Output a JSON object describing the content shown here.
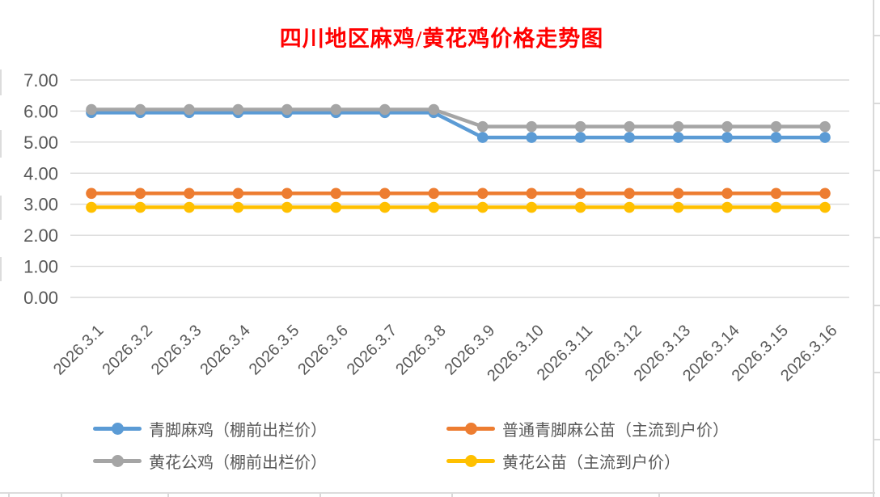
{
  "window": {
    "background": "#FFFFFF"
  },
  "title": {
    "text": "四川地区麻鸡/黄花鸡价格走势图",
    "color": "#FF0000"
  },
  "axis": {
    "ytick_labels": [
      "0.00",
      "1.00",
      "2.00",
      "3.00",
      "4.00",
      "5.00",
      "6.00",
      "7.00"
    ],
    "text_color": "#595959",
    "gridline_color": "#D9D9D9"
  },
  "chart_data": {
    "type": "line",
    "title": "四川地区麻鸡/黄花鸡价格走势图",
    "x": [
      "2026.3.1",
      "2026.3.2",
      "2026.3.3",
      "2026.3.4",
      "2026.3.5",
      "2026.3.6",
      "2026.3.7",
      "2026.3.8",
      "2026.3.9",
      "2026.3.10",
      "2026.3.11",
      "2026.3.12",
      "2026.3.13",
      "2026.3.14",
      "2026.3.15",
      "2026.3.16"
    ],
    "series": [
      {
        "name": "青脚麻鸡（棚前出栏价）",
        "color": "#5B9BD5",
        "values": [
          5.95,
          5.95,
          5.95,
          5.95,
          5.95,
          5.95,
          5.95,
          5.95,
          5.15,
          5.15,
          5.15,
          5.15,
          5.15,
          5.15,
          5.15,
          5.15
        ]
      },
      {
        "name": "普通青脚麻公苗（主流到户价）",
        "color": "#ED7D31",
        "values": [
          3.35,
          3.35,
          3.35,
          3.35,
          3.35,
          3.35,
          3.35,
          3.35,
          3.35,
          3.35,
          3.35,
          3.35,
          3.35,
          3.35,
          3.35,
          3.35
        ]
      },
      {
        "name": "黄花公鸡（棚前出栏价）",
        "color": "#A5A5A5",
        "values": [
          6.05,
          6.05,
          6.05,
          6.05,
          6.05,
          6.05,
          6.05,
          6.05,
          5.5,
          5.5,
          5.5,
          5.5,
          5.5,
          5.5,
          5.5,
          5.5
        ]
      },
      {
        "name": "黄花公苗（主流到户价）",
        "color": "#FFC000",
        "values": [
          2.9,
          2.9,
          2.9,
          2.9,
          2.9,
          2.9,
          2.9,
          2.9,
          2.9,
          2.9,
          2.9,
          2.9,
          2.9,
          2.9,
          2.9,
          2.9
        ]
      }
    ],
    "ylim": [
      0,
      7
    ],
    "ytick_step": 1,
    "grid": true,
    "legend_position": "bottom",
    "marker": "circle"
  }
}
